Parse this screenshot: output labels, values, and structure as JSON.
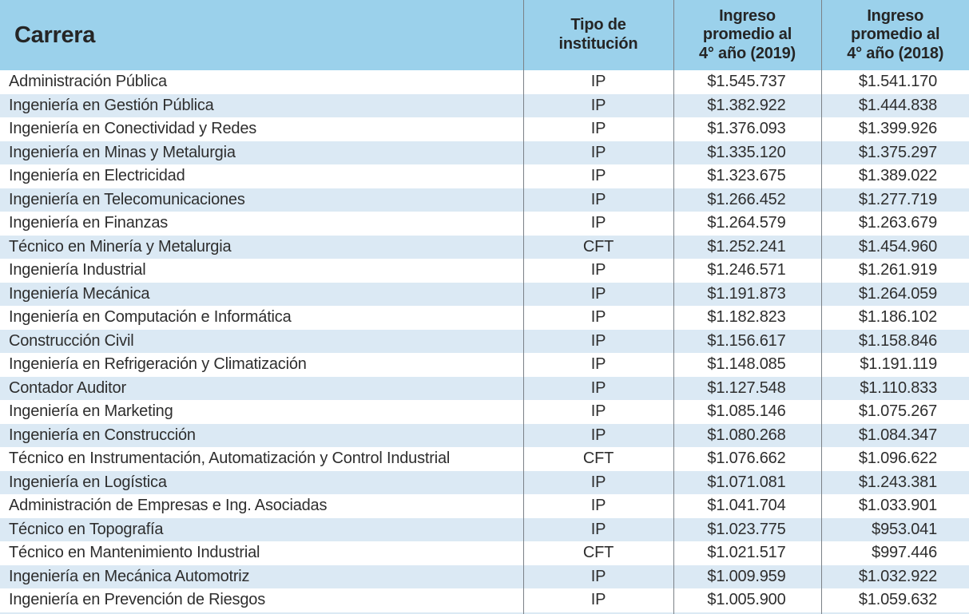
{
  "colors": {
    "header_background": "#9bd1eb",
    "stripe_background": "#dbe9f4",
    "row_background": "#ffffff",
    "divider_line": "#7b8187",
    "text": "#2e2e2e"
  },
  "header": {
    "carrera": "Carrera",
    "tipo": {
      "l1": "Tipo de",
      "l2": "institución"
    },
    "ing2019": {
      "l1": "Ingreso",
      "l2": "promedio al",
      "l3": "4° año (2019)"
    },
    "ing2018": {
      "l1": "Ingreso",
      "l2": "promedio al",
      "l3": "4° año (2018)"
    }
  },
  "chart_data": {
    "type": "table",
    "title": "",
    "columns": [
      "Carrera",
      "Tipo de institución",
      "Ingreso promedio al 4° año (2019)",
      "Ingreso promedio al 4° año (2018)"
    ],
    "rows": [
      [
        "Administración Pública",
        "IP",
        "$1.545.737",
        "$1.541.170"
      ],
      [
        "Ingeniería en Gestión Pública",
        "IP",
        "$1.382.922",
        "$1.444.838"
      ],
      [
        "Ingeniería en Conectividad y Redes",
        "IP",
        "$1.376.093",
        "$1.399.926"
      ],
      [
        "Ingeniería en Minas y Metalurgia",
        "IP",
        "$1.335.120",
        "$1.375.297"
      ],
      [
        "Ingeniería en Electricidad",
        "IP",
        "$1.323.675",
        "$1.389.022"
      ],
      [
        "Ingeniería en Telecomunicaciones",
        "IP",
        "$1.266.452",
        "$1.277.719"
      ],
      [
        "Ingeniería en Finanzas",
        "IP",
        "$1.264.579",
        "$1.263.679"
      ],
      [
        "Técnico en Minería y Metalurgia",
        "CFT",
        "$1.252.241",
        "$1.454.960"
      ],
      [
        "Ingeniería Industrial",
        "IP",
        "$1.246.571",
        "$1.261.919"
      ],
      [
        "Ingeniería Mecánica",
        "IP",
        "$1.191.873",
        "$1.264.059"
      ],
      [
        "Ingeniería en Computación e Informática",
        "IP",
        "$1.182.823",
        "$1.186.102"
      ],
      [
        "Construcción Civil",
        "IP",
        "$1.156.617",
        "$1.158.846"
      ],
      [
        "Ingeniería en Refrigeración y Climatización",
        "IP",
        "$1.148.085",
        "$1.191.119"
      ],
      [
        "Contador Auditor",
        "IP",
        "$1.127.548",
        "$1.110.833"
      ],
      [
        "Ingeniería en Marketing",
        "IP",
        "$1.085.146",
        "$1.075.267"
      ],
      [
        "Ingeniería en Construcción",
        "IP",
        "$1.080.268",
        "$1.084.347"
      ],
      [
        "Técnico en Instrumentación, Automatización y Control Industrial",
        "CFT",
        "$1.076.662",
        "$1.096.622"
      ],
      [
        "Ingeniería en Logística",
        "IP",
        "$1.071.081",
        "$1.243.381"
      ],
      [
        "Administración de Empresas e Ing. Asociadas",
        "IP",
        "$1.041.704",
        "$1.033.901"
      ],
      [
        "Técnico en Topografía",
        "IP",
        "$1.023.775",
        "$953.041"
      ],
      [
        "Técnico en Mantenimiento Industrial",
        "CFT",
        "$1.021.517",
        "$997.446"
      ],
      [
        "Ingeniería en Mecánica Automotriz",
        "IP",
        "$1.009.959",
        "$1.032.922"
      ],
      [
        "Ingeniería en Prevención de Riesgos",
        "IP",
        "$1.005.900",
        "$1.059.632"
      ]
    ]
  }
}
